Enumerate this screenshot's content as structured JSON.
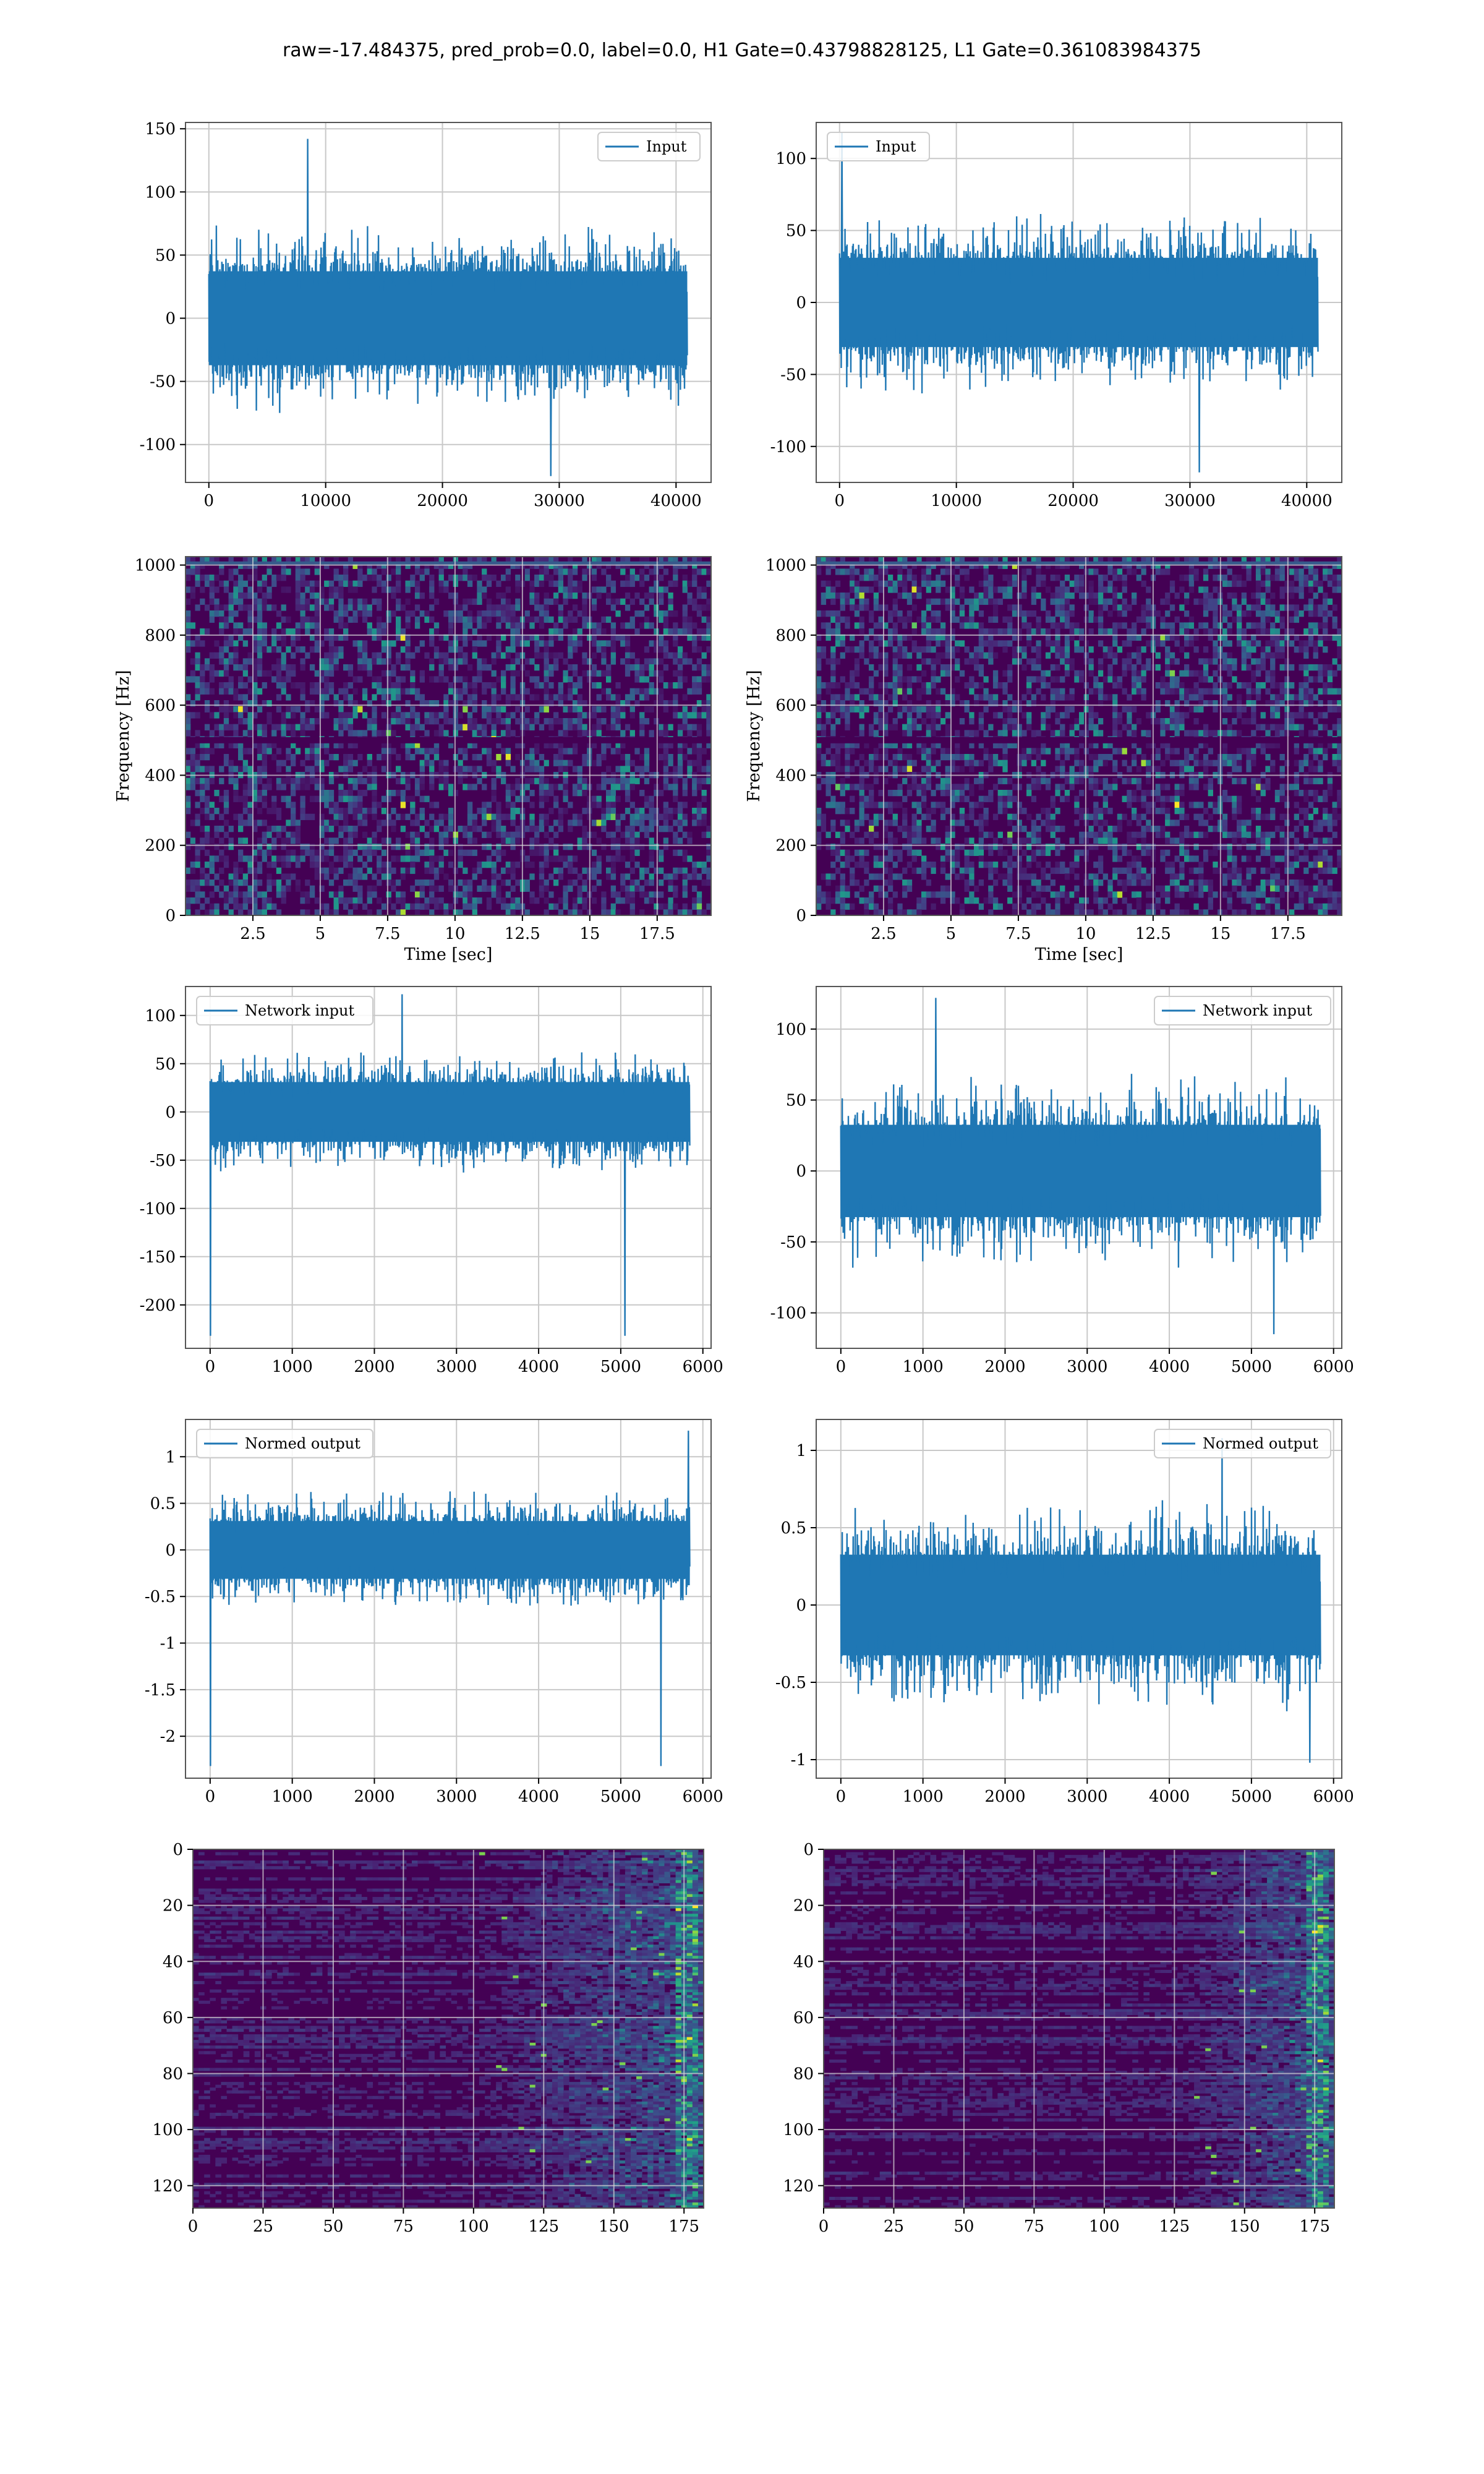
{
  "figure": {
    "title": "raw=-17.484375, pred_prob=0.0, label=0.0, H1 Gate=0.43798828125, L1 Gate=0.361083984375"
  },
  "colors": {
    "line": "#1f77b4",
    "grid": "#c8c8c8",
    "axes": "#000000",
    "viridis_dark": "#440154",
    "viridis_mid": "#21918c",
    "viridis_bright": "#fde725"
  },
  "chart_data": [
    {
      "id": "h1-input",
      "type": "line",
      "title": "",
      "xlabel": "",
      "ylabel": "",
      "legend": "Input",
      "legend_loc": "top-right",
      "xlim": [
        -2000,
        43000
      ],
      "ylim": [
        -130,
        155
      ],
      "xticks": [
        0,
        10000,
        20000,
        30000,
        40000
      ],
      "yticks": [
        -100,
        -50,
        0,
        50,
        100,
        150
      ],
      "series": [
        {
          "name": "Input",
          "x_range": [
            0,
            40960
          ],
          "typical_abs": [
            45,
            75
          ],
          "min": -125,
          "max": 142
        }
      ],
      "grid": true
    },
    {
      "id": "l1-input",
      "type": "line",
      "title": "",
      "xlabel": "",
      "ylabel": "",
      "legend": "Input",
      "legend_loc": "top-left",
      "xlim": [
        -2000,
        43000
      ],
      "ylim": [
        -125,
        125
      ],
      "xticks": [
        0,
        10000,
        20000,
        30000,
        40000
      ],
      "yticks": [
        -100,
        -50,
        0,
        50,
        100
      ],
      "series": [
        {
          "name": "Input",
          "x_range": [
            0,
            40960
          ],
          "typical_abs": [
            35,
            65
          ],
          "min": -118,
          "max": 118
        }
      ],
      "grid": true
    },
    {
      "id": "h1-spectrogram",
      "type": "heatmap",
      "title": "",
      "xlabel": "Time [sec]",
      "ylabel": "Frequency [Hz]",
      "xlim": [
        0,
        19.5
      ],
      "ylim": [
        0,
        1024
      ],
      "xticks": [
        2.5,
        5.0,
        7.5,
        10.0,
        12.5,
        15.0,
        17.5
      ],
      "yticks": [
        0,
        200,
        400,
        600,
        800,
        1000
      ],
      "colormap": "viridis",
      "grid": true,
      "features": {
        "bright_hz_band": 1005,
        "dark_hz_bands": [
          500
        ]
      }
    },
    {
      "id": "l1-spectrogram",
      "type": "heatmap",
      "title": "",
      "xlabel": "Time [sec]",
      "ylabel": "Frequency [Hz]",
      "xlim": [
        0,
        19.5
      ],
      "ylim": [
        0,
        1024
      ],
      "xticks": [
        2.5,
        5.0,
        7.5,
        10.0,
        12.5,
        15.0,
        17.5
      ],
      "yticks": [
        0,
        200,
        400,
        600,
        800,
        1000
      ],
      "colormap": "viridis",
      "grid": true,
      "features": {
        "bright_hz_band": 1005,
        "dark_hz_bands": [
          500
        ]
      }
    },
    {
      "id": "h1-network-input",
      "type": "line",
      "title": "",
      "xlabel": "",
      "ylabel": "",
      "legend": "Network input",
      "legend_loc": "top-left",
      "xlim": [
        -300,
        6100
      ],
      "ylim": [
        -245,
        130
      ],
      "xticks": [
        0,
        1000,
        2000,
        3000,
        4000,
        5000,
        6000
      ],
      "yticks": [
        -200,
        -150,
        -100,
        -50,
        0,
        50,
        100
      ],
      "series": [
        {
          "name": "Network input",
          "x_range": [
            0,
            5840
          ],
          "typical_abs": [
            35,
            65
          ],
          "min": -232,
          "max": 122
        }
      ],
      "grid": true
    },
    {
      "id": "l1-network-input",
      "type": "line",
      "title": "",
      "xlabel": "",
      "ylabel": "",
      "legend": "Network input",
      "legend_loc": "top-right",
      "xlim": [
        -300,
        6100
      ],
      "ylim": [
        -125,
        130
      ],
      "xticks": [
        0,
        1000,
        2000,
        3000,
        4000,
        5000,
        6000
      ],
      "yticks": [
        -100,
        -50,
        0,
        50,
        100
      ],
      "series": [
        {
          "name": "Network input",
          "x_range": [
            0,
            5840
          ],
          "typical_abs": [
            35,
            70
          ],
          "min": -115,
          "max": 122
        }
      ],
      "grid": true
    },
    {
      "id": "h1-normed-output",
      "type": "line",
      "title": "",
      "xlabel": "",
      "ylabel": "",
      "legend": "Normed output",
      "legend_loc": "top-left",
      "xlim": [
        -300,
        6100
      ],
      "ylim": [
        -2.45,
        1.4
      ],
      "xticks": [
        0,
        1000,
        2000,
        3000,
        4000,
        5000,
        6000
      ],
      "yticks": [
        -2.0,
        -1.5,
        -1.0,
        -0.5,
        0.0,
        0.5,
        1.0
      ],
      "series": [
        {
          "name": "Normed output",
          "x_range": [
            0,
            5840
          ],
          "typical_abs": [
            0.35,
            0.65
          ],
          "min": -2.32,
          "max": 1.28
        }
      ],
      "grid": true
    },
    {
      "id": "l1-normed-output",
      "type": "line",
      "title": "",
      "xlabel": "",
      "ylabel": "",
      "legend": "Normed output",
      "legend_loc": "top-right",
      "xlim": [
        -300,
        6100
      ],
      "ylim": [
        -1.12,
        1.2
      ],
      "xticks": [
        0,
        1000,
        2000,
        3000,
        4000,
        5000,
        6000
      ],
      "yticks": [
        -1.0,
        -0.5,
        0.0,
        0.5,
        1.0
      ],
      "series": [
        {
          "name": "Normed output",
          "x_range": [
            0,
            5840
          ],
          "typical_abs": [
            0.35,
            0.7
          ],
          "min": -1.02,
          "max": 1.08
        }
      ],
      "grid": true
    },
    {
      "id": "h1-features",
      "type": "heatmap",
      "title": "",
      "xlabel": "",
      "ylabel": "",
      "xlim": [
        0,
        182
      ],
      "ylim": [
        128,
        0
      ],
      "xticks": [
        0,
        25,
        50,
        75,
        100,
        125,
        150,
        175
      ],
      "yticks": [
        0,
        20,
        40,
        60,
        80,
        100,
        120
      ],
      "colormap": "viridis",
      "grid": true,
      "features": {
        "activity_ramp_start": 100,
        "bright_col": 175
      }
    },
    {
      "id": "l1-features",
      "type": "heatmap",
      "title": "",
      "xlabel": "",
      "ylabel": "",
      "xlim": [
        0,
        182
      ],
      "ylim": [
        128,
        0
      ],
      "xticks": [
        0,
        25,
        50,
        75,
        100,
        125,
        150,
        175
      ],
      "yticks": [
        0,
        20,
        40,
        60,
        80,
        100,
        120
      ],
      "colormap": "viridis",
      "grid": true,
      "features": {
        "activity_ramp_start": 125,
        "bright_col": 175
      }
    }
  ]
}
